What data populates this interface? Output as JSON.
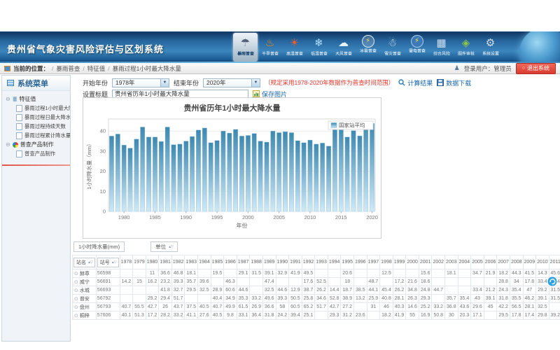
{
  "banner": {
    "title": "贵州省气象灾害风险评估与区划系统",
    "nav_items": [
      {
        "label": "暴雨普查",
        "icon": "rainstorm",
        "active": true
      },
      {
        "label": "干旱普查",
        "icon": "drought",
        "active": false
      },
      {
        "label": "高温普查",
        "icon": "high-temp",
        "active": false
      },
      {
        "label": "低温普查",
        "icon": "low-temp",
        "active": false
      },
      {
        "label": "大风普查",
        "icon": "wind",
        "active": false
      },
      {
        "label": "冰雹普查",
        "icon": "hail",
        "active": false
      },
      {
        "label": "雪灾普查",
        "icon": "snow",
        "active": false
      },
      {
        "label": "雷电普查",
        "icon": "lightning",
        "active": false
      },
      {
        "label": "综合风险",
        "icon": "composite-risk",
        "active": false
      },
      {
        "label": "图件审核",
        "icon": "map-review",
        "active": false
      },
      {
        "label": "系统设置",
        "icon": "settings",
        "active": false
      }
    ]
  },
  "breadcrumb": {
    "location_label": "当前的位置：",
    "path": [
      "暴雨普查",
      "特征值",
      "暴雨过程1小时最大降水量"
    ],
    "user_label": "登录用户：管理员",
    "logout_label": "退出系统"
  },
  "sidebar": {
    "title": "系统菜单",
    "groups": [
      {
        "label": "特征值",
        "icon": "list",
        "children": [
          "暴雨过程1小时最大降水量",
          "暴雨过程日最大降水量",
          "暴雨过程持续天数",
          "暴雨过程累计降水量"
        ]
      },
      {
        "label": "普查产品制作",
        "icon": "pie",
        "children": [
          "普查产品制作"
        ]
      }
    ]
  },
  "toolbar": {
    "start_year_label": "开始年份",
    "start_year_value": "1978年",
    "end_year_label": "结束年份",
    "end_year_value": "2020年",
    "note": "（规定采用1978-2020年数据作为普查时间范围）",
    "calc_button": "计算结果",
    "download_button": "数据下载",
    "title_label": "设置标题",
    "title_value": "贵州省历年1小时最大降水量",
    "save_image_button": "保存图片"
  },
  "chart_data": {
    "type": "bar",
    "title": "贵州省历年1小时最大降水量",
    "legend": [
      "国家站平均"
    ],
    "xlabel": "年份",
    "ylabel": "1小时降水量（mm）",
    "ylim": [
      0,
      46
    ],
    "yticks": [
      0,
      10,
      20,
      30,
      40
    ],
    "xticks": [
      1980,
      1985,
      1990,
      1995,
      2000,
      2005,
      2010,
      2015,
      2020
    ],
    "x": [
      1978,
      1979,
      1980,
      1981,
      1982,
      1983,
      1984,
      1985,
      1986,
      1987,
      1988,
      1989,
      1990,
      1991,
      1992,
      1993,
      1994,
      1995,
      1996,
      1997,
      1998,
      1999,
      2000,
      2001,
      2002,
      2003,
      2004,
      2005,
      2006,
      2007,
      2008,
      2009,
      2010,
      2011,
      2012,
      2013,
      2014,
      2015,
      2016,
      2017,
      2018,
      2019,
      2020
    ],
    "values": [
      37.5,
      38.5,
      33,
      31.5,
      36,
      42,
      37,
      37,
      34.8,
      42,
      33.2,
      33.5,
      35,
      37.3,
      40.5,
      41.5,
      34.2,
      35.3,
      40,
      39,
      40.8,
      37.5,
      37.8,
      38.8,
      35,
      34.5,
      40,
      39.2,
      39.7,
      39.2,
      35.2,
      34.2,
      35.5,
      33.5,
      34,
      32.5,
      41.2,
      42.8,
      37,
      40.2,
      37.6,
      44.8,
      43.8
    ],
    "bar_color_top": "#3e88b0",
    "bar_color_bottom": "#cfe9f6"
  },
  "table": {
    "measure_box": "1小时降水量(mm)",
    "unit_box": "单位",
    "col_station": "站名",
    "col_station_id": "站号",
    "years": [
      1978,
      1979,
      1980,
      1981,
      1982,
      1983,
      1984,
      1985,
      1986,
      1987,
      1988,
      1989,
      1990,
      1991,
      1992,
      1993,
      1994,
      1995,
      1996,
      1997,
      1998,
      1999,
      2000,
      2001,
      2002,
      2003,
      2004,
      2005,
      2006,
      2007,
      2008,
      2009,
      2010,
      2011,
      2012,
      2013,
      2014,
      2015
    ],
    "rows": [
      {
        "name": "赫章",
        "id": "56598",
        "values": [
          "",
          "",
          "11",
          "36.6",
          "46.8",
          "18.1",
          "",
          "19.5",
          "",
          "29.1",
          "31.5",
          "39.1",
          "32.9",
          "41.9",
          "49.5",
          "",
          "",
          "20.6",
          "",
          "",
          "12.5",
          "",
          "",
          "15.6",
          "",
          "18.1",
          "",
          "34.7",
          "21.9",
          "18.2",
          "44.3",
          "41.5",
          "14.3",
          "45.6",
          "7.8",
          "15.3",
          "",
          ""
        ]
      },
      {
        "name": "威宁",
        "id": "56691",
        "values": [
          "14.2",
          "15",
          "16.2",
          "23.2",
          "39.3",
          "35.7",
          "39.6",
          "",
          "46.3",
          "",
          "",
          "47.4",
          "",
          "",
          "17.6",
          "52.5",
          "",
          "18",
          "",
          "48.7",
          "",
          "17.2",
          "21.6",
          "18.6",
          "",
          "",
          "",
          "",
          "",
          "28.8",
          "34",
          "17.8",
          "33.4",
          "31.4",
          "29.5",
          "35.1",
          "",
          ""
        ]
      },
      {
        "name": "水城",
        "id": "56693",
        "values": [
          "",
          "",
          "",
          "41.8",
          "32.7",
          "29.5",
          "32.5",
          "28.9",
          "60.6",
          "44.6",
          "",
          "32.5",
          "44.6",
          "12.9",
          "38.7",
          "26.2",
          "14.4",
          "18.7",
          "38.5",
          "44.1",
          "45.4",
          "26.2",
          "34.8",
          "24.8",
          "44.7",
          "",
          "",
          "33.4",
          "21.2",
          "24.3",
          "35.4",
          "47",
          "29.2",
          "31.5",
          "45.8",
          "34.3",
          "",
          "31.9"
        ]
      },
      {
        "name": "普安",
        "id": "56792",
        "values": [
          "",
          "",
          "29.2",
          "29.4",
          "51.7",
          "",
          "",
          "40.4",
          "34.9",
          "35.3",
          "33.2",
          "49.6",
          "39.3",
          "50.5",
          "25.8",
          "34.6",
          "52.8",
          "38.9",
          "13.2",
          "25.9",
          "40.8",
          "28.1",
          "26.3",
          "29.3",
          "",
          "35.7",
          "35.4",
          "43",
          "39.1",
          "31.8",
          "35.5",
          "46.2",
          "39.1",
          "31.5",
          "38.6",
          "46.8",
          "31.1",
          ""
        ]
      },
      {
        "name": "盘州",
        "id": "56793",
        "values": [
          "40.7",
          "55.5",
          "42.7",
          "26",
          "43.7",
          "37.5",
          "40.5",
          "40.7",
          "49.9",
          "61.5",
          "26.9",
          "36.6",
          "58",
          "60.5",
          "65.2",
          "51.7",
          "42.7",
          "27.2",
          "",
          "31",
          "46",
          "40.3",
          "14.6",
          "25.2",
          "33.2",
          "36.8",
          "43.6",
          "29.6",
          "45",
          "42.2",
          "56.5",
          "28.1",
          "32.5",
          "",
          "30.2",
          "18.5",
          "35.8",
          ""
        ]
      },
      {
        "name": "桐梓",
        "id": "57606",
        "values": [
          "40.1",
          "51.3",
          "17.2",
          "28.2",
          "33.2",
          "41.1",
          "27.6",
          "40.5",
          "9.8",
          "33.1",
          "36.4",
          "31.8",
          "24.2",
          "39.4",
          "25.1",
          "",
          "29.3",
          "31.2",
          "23.6",
          "",
          "18.2",
          "41.9",
          "55",
          "16.9",
          "50.8",
          "30",
          "20.3",
          "17.1",
          "",
          "29.5",
          "17.8",
          "17.4",
          "29.8",
          "39.2",
          "29.3",
          "14.1",
          "42.1",
          ""
        ]
      }
    ]
  },
  "colors": {
    "accent": "#2a7fbf",
    "note_red": "#e53328",
    "logout_red": "#d83b2f",
    "bar_top": "#3e88b0",
    "bar_bottom": "#cfe9f6"
  }
}
